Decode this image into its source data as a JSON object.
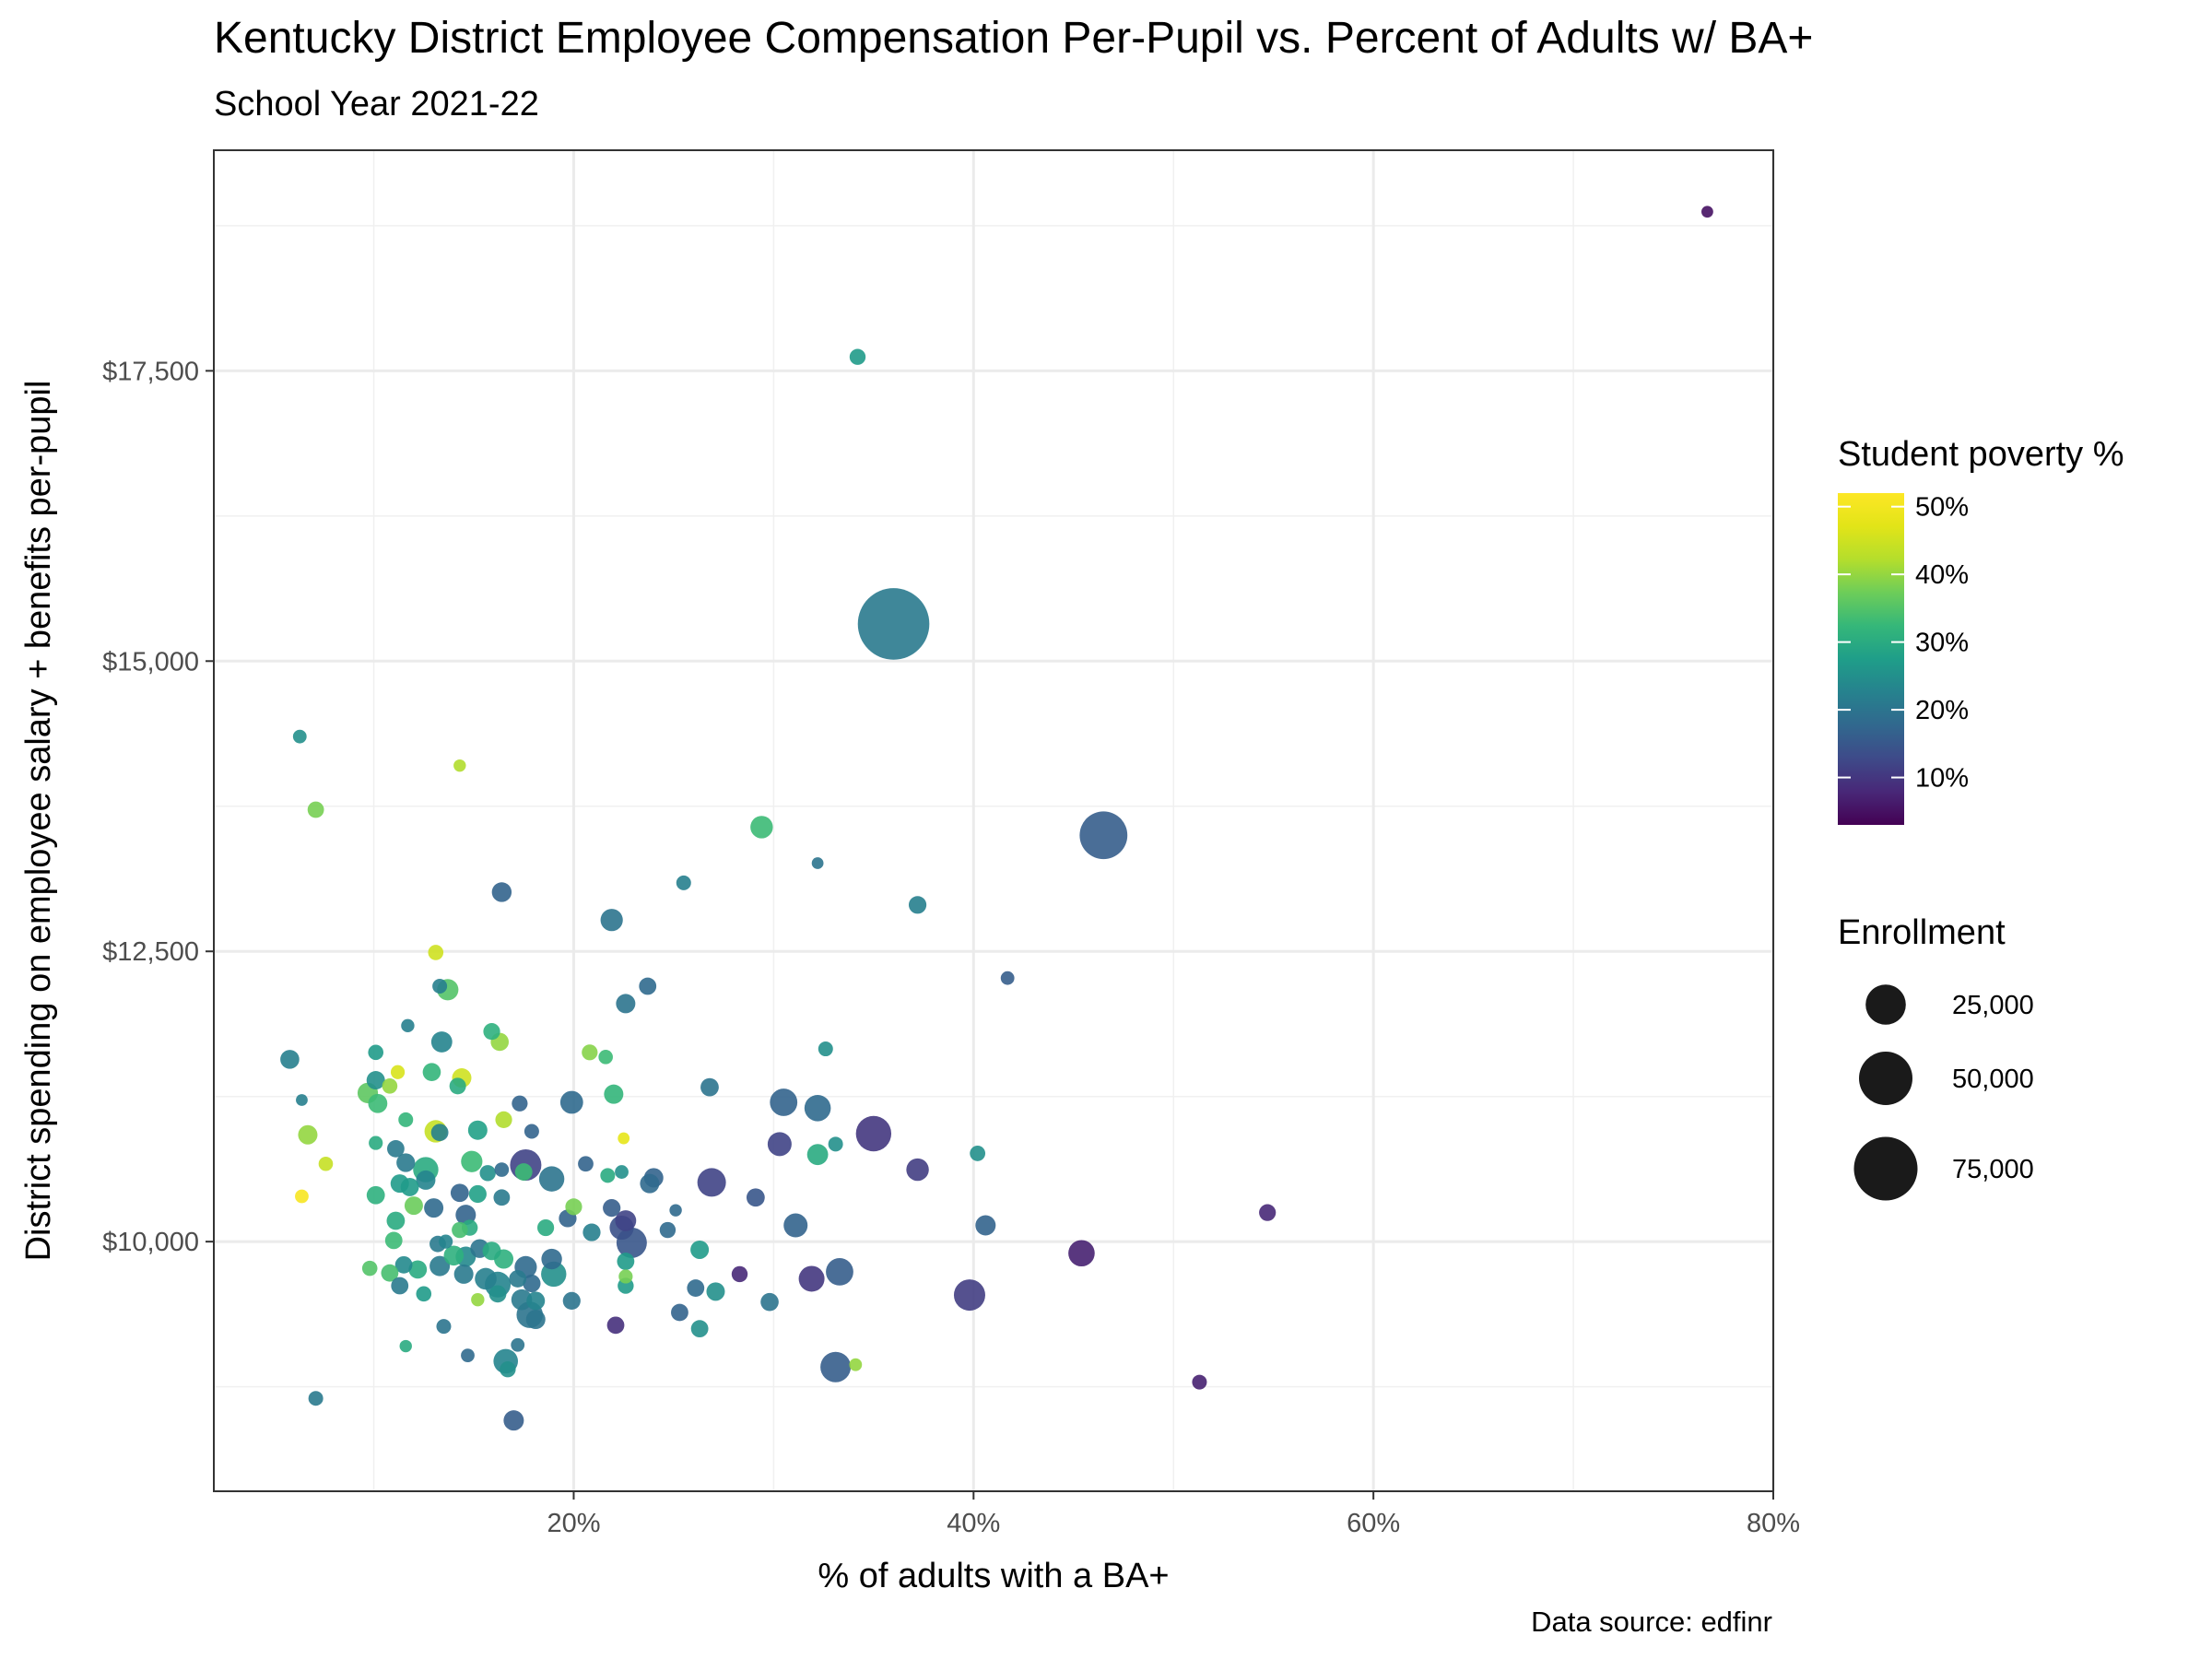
{
  "page": {
    "title": "Kentucky District Employee Compensation Per-Pupil vs. Percent of Adults w/ BA+",
    "subtitle": "School Year 2021-22",
    "caption": "Data source: edfinr"
  },
  "chart_data": {
    "type": "scatter",
    "title": "Kentucky District Employee Compensation Per-Pupil vs. Percent of Adults w/ BA+",
    "subtitle": "School Year 2021-22",
    "xlabel": "% of adults with a BA+",
    "ylabel": "District spending on employee salary + benefits per-pupil",
    "xlim": [
      0.02,
      0.8
    ],
    "ylim": [
      7850,
      19400
    ],
    "x_ticks": [
      {
        "value": 0.2,
        "label": "20%"
      },
      {
        "value": 0.4,
        "label": "40%"
      },
      {
        "value": 0.6,
        "label": "60%"
      },
      {
        "value": 0.8,
        "label": "80%"
      }
    ],
    "y_ticks": [
      {
        "value": 10000,
        "label": "$10,000"
      },
      {
        "value": 12500,
        "label": "$12,500"
      },
      {
        "value": 15000,
        "label": "$15,000"
      },
      {
        "value": 17500,
        "label": "$17,500"
      }
    ],
    "grid": true,
    "color_legend": {
      "title": "Student poverty %",
      "min": 0.03,
      "max": 0.52,
      "ticks": [
        {
          "value": 0.5,
          "label": "50%"
        },
        {
          "value": 0.4,
          "label": "40%"
        },
        {
          "value": 0.3,
          "label": "30%"
        },
        {
          "value": 0.2,
          "label": "20%"
        },
        {
          "value": 0.1,
          "label": "10%"
        }
      ]
    },
    "size_legend": {
      "title": "Enrollment",
      "items": [
        {
          "value": 25000,
          "label": "25,000"
        },
        {
          "value": 50000,
          "label": "50,000"
        },
        {
          "value": 75000,
          "label": "75,000"
        }
      ]
    },
    "points": [
      {
        "x": 0.767,
        "y": 18870,
        "poverty": 0.05,
        "enrollment": 300
      },
      {
        "x": 0.342,
        "y": 17620,
        "poverty": 0.27,
        "enrollment": 1500
      },
      {
        "x": 0.36,
        "y": 15320,
        "poverty": 0.21,
        "enrollment": 98000
      },
      {
        "x": 0.465,
        "y": 13500,
        "poverty": 0.16,
        "enrollment": 38000
      },
      {
        "x": 0.294,
        "y": 13570,
        "poverty": 0.33,
        "enrollment": 5000
      },
      {
        "x": 0.063,
        "y": 14350,
        "poverty": 0.25,
        "enrollment": 700
      },
      {
        "x": 0.143,
        "y": 14100,
        "poverty": 0.42,
        "enrollment": 400
      },
      {
        "x": 0.071,
        "y": 13720,
        "poverty": 0.38,
        "enrollment": 1600
      },
      {
        "x": 0.255,
        "y": 13090,
        "poverty": 0.22,
        "enrollment": 1000
      },
      {
        "x": 0.322,
        "y": 13260,
        "poverty": 0.2,
        "enrollment": 300
      },
      {
        "x": 0.372,
        "y": 12900,
        "poverty": 0.22,
        "enrollment": 2200
      },
      {
        "x": 0.164,
        "y": 13010,
        "poverty": 0.17,
        "enrollment": 3200
      },
      {
        "x": 0.219,
        "y": 12770,
        "poverty": 0.2,
        "enrollment": 4800
      },
      {
        "x": 0.131,
        "y": 12490,
        "poverty": 0.45,
        "enrollment": 1200
      },
      {
        "x": 0.417,
        "y": 12270,
        "poverty": 0.16,
        "enrollment": 700
      },
      {
        "x": 0.237,
        "y": 12200,
        "poverty": 0.18,
        "enrollment": 2000
      },
      {
        "x": 0.226,
        "y": 12050,
        "poverty": 0.2,
        "enrollment": 3000
      },
      {
        "x": 0.137,
        "y": 12170,
        "poverty": 0.35,
        "enrollment": 4200
      },
      {
        "x": 0.133,
        "y": 12200,
        "poverty": 0.22,
        "enrollment": 1000
      },
      {
        "x": 0.117,
        "y": 11860,
        "poverty": 0.22,
        "enrollment": 600
      },
      {
        "x": 0.134,
        "y": 11720,
        "poverty": 0.23,
        "enrollment": 4000
      },
      {
        "x": 0.159,
        "y": 11810,
        "poverty": 0.31,
        "enrollment": 1800
      },
      {
        "x": 0.163,
        "y": 11720,
        "poverty": 0.4,
        "enrollment": 2300
      },
      {
        "x": 0.058,
        "y": 11570,
        "poverty": 0.22,
        "enrollment": 2800
      },
      {
        "x": 0.101,
        "y": 11630,
        "poverty": 0.27,
        "enrollment": 1200
      },
      {
        "x": 0.208,
        "y": 11630,
        "poverty": 0.39,
        "enrollment": 1400
      },
      {
        "x": 0.216,
        "y": 11590,
        "poverty": 0.33,
        "enrollment": 900
      },
      {
        "x": 0.326,
        "y": 11660,
        "poverty": 0.25,
        "enrollment": 1000
      },
      {
        "x": 0.112,
        "y": 11460,
        "poverty": 0.46,
        "enrollment": 800
      },
      {
        "x": 0.129,
        "y": 11460,
        "poverty": 0.32,
        "enrollment": 2300
      },
      {
        "x": 0.144,
        "y": 11410,
        "poverty": 0.45,
        "enrollment": 3000
      },
      {
        "x": 0.101,
        "y": 11390,
        "poverty": 0.25,
        "enrollment": 2500
      },
      {
        "x": 0.108,
        "y": 11340,
        "poverty": 0.4,
        "enrollment": 1200
      },
      {
        "x": 0.142,
        "y": 11340,
        "poverty": 0.3,
        "enrollment": 1700
      },
      {
        "x": 0.097,
        "y": 11280,
        "poverty": 0.36,
        "enrollment": 3600
      },
      {
        "x": 0.268,
        "y": 11330,
        "poverty": 0.2,
        "enrollment": 2400
      },
      {
        "x": 0.22,
        "y": 11270,
        "poverty": 0.32,
        "enrollment": 3000
      },
      {
        "x": 0.102,
        "y": 11190,
        "poverty": 0.33,
        "enrollment": 2900
      },
      {
        "x": 0.064,
        "y": 11220,
        "poverty": 0.22,
        "enrollment": 300
      },
      {
        "x": 0.173,
        "y": 11190,
        "poverty": 0.17,
        "enrollment": 1400
      },
      {
        "x": 0.199,
        "y": 11200,
        "poverty": 0.18,
        "enrollment": 5200
      },
      {
        "x": 0.305,
        "y": 11200,
        "poverty": 0.17,
        "enrollment": 9000
      },
      {
        "x": 0.322,
        "y": 11150,
        "poverty": 0.18,
        "enrollment": 8000
      },
      {
        "x": 0.165,
        "y": 11050,
        "poverty": 0.42,
        "enrollment": 1800
      },
      {
        "x": 0.116,
        "y": 11050,
        "poverty": 0.32,
        "enrollment": 1000
      },
      {
        "x": 0.152,
        "y": 10960,
        "poverty": 0.28,
        "enrollment": 3000
      },
      {
        "x": 0.131,
        "y": 10950,
        "poverty": 0.44,
        "enrollment": 5000
      },
      {
        "x": 0.133,
        "y": 10940,
        "poverty": 0.22,
        "enrollment": 2000
      },
      {
        "x": 0.179,
        "y": 10950,
        "poverty": 0.17,
        "enrollment": 1000
      },
      {
        "x": 0.225,
        "y": 10890,
        "poverty": 0.48,
        "enrollment": 300
      },
      {
        "x": 0.067,
        "y": 10920,
        "poverty": 0.4,
        "enrollment": 3000
      },
      {
        "x": 0.35,
        "y": 10930,
        "poverty": 0.1,
        "enrollment": 18000
      },
      {
        "x": 0.303,
        "y": 10840,
        "poverty": 0.12,
        "enrollment": 6000
      },
      {
        "x": 0.101,
        "y": 10850,
        "poverty": 0.3,
        "enrollment": 800
      },
      {
        "x": 0.111,
        "y": 10800,
        "poverty": 0.21,
        "enrollment": 2000
      },
      {
        "x": 0.331,
        "y": 10840,
        "poverty": 0.25,
        "enrollment": 1000
      },
      {
        "x": 0.322,
        "y": 10750,
        "poverty": 0.3,
        "enrollment": 4000
      },
      {
        "x": 0.402,
        "y": 10760,
        "poverty": 0.25,
        "enrollment": 1300
      },
      {
        "x": 0.116,
        "y": 10680,
        "poverty": 0.21,
        "enrollment": 2600
      },
      {
        "x": 0.126,
        "y": 10620,
        "poverty": 0.3,
        "enrollment": 7000
      },
      {
        "x": 0.149,
        "y": 10690,
        "poverty": 0.33,
        "enrollment": 4200
      },
      {
        "x": 0.176,
        "y": 10660,
        "poverty": 0.12,
        "enrollment": 13000
      },
      {
        "x": 0.175,
        "y": 10600,
        "poverty": 0.33,
        "enrollment": 2000
      },
      {
        "x": 0.076,
        "y": 10670,
        "poverty": 0.44,
        "enrollment": 900
      },
      {
        "x": 0.206,
        "y": 10670,
        "poverty": 0.17,
        "enrollment": 1300
      },
      {
        "x": 0.164,
        "y": 10620,
        "poverty": 0.18,
        "enrollment": 900
      },
      {
        "x": 0.157,
        "y": 10590,
        "poverty": 0.25,
        "enrollment": 1500
      },
      {
        "x": 0.224,
        "y": 10600,
        "poverty": 0.25,
        "enrollment": 700
      },
      {
        "x": 0.217,
        "y": 10570,
        "poverty": 0.3,
        "enrollment": 1000
      },
      {
        "x": 0.24,
        "y": 10550,
        "poverty": 0.17,
        "enrollment": 3000
      },
      {
        "x": 0.238,
        "y": 10500,
        "poverty": 0.18,
        "enrollment": 3000
      },
      {
        "x": 0.189,
        "y": 10540,
        "poverty": 0.2,
        "enrollment": 7000
      },
      {
        "x": 0.126,
        "y": 10530,
        "poverty": 0.23,
        "enrollment": 3000
      },
      {
        "x": 0.113,
        "y": 10500,
        "poverty": 0.27,
        "enrollment": 2500
      },
      {
        "x": 0.269,
        "y": 10510,
        "poverty": 0.12,
        "enrollment": 10000
      },
      {
        "x": 0.372,
        "y": 10620,
        "poverty": 0.11,
        "enrollment": 5000
      },
      {
        "x": 0.118,
        "y": 10470,
        "poverty": 0.27,
        "enrollment": 2400
      },
      {
        "x": 0.143,
        "y": 10420,
        "poverty": 0.17,
        "enrollment": 2400
      },
      {
        "x": 0.152,
        "y": 10410,
        "poverty": 0.28,
        "enrollment": 2200
      },
      {
        "x": 0.064,
        "y": 10390,
        "poverty": 0.51,
        "enrollment": 700
      },
      {
        "x": 0.101,
        "y": 10400,
        "poverty": 0.31,
        "enrollment": 2400
      },
      {
        "x": 0.164,
        "y": 10380,
        "poverty": 0.21,
        "enrollment": 1600
      },
      {
        "x": 0.291,
        "y": 10380,
        "poverty": 0.15,
        "enrollment": 2400
      },
      {
        "x": 0.12,
        "y": 10310,
        "poverty": 0.37,
        "enrollment": 2500
      },
      {
        "x": 0.13,
        "y": 10290,
        "poverty": 0.18,
        "enrollment": 3000
      },
      {
        "x": 0.2,
        "y": 10300,
        "poverty": 0.38,
        "enrollment": 1800
      },
      {
        "x": 0.219,
        "y": 10290,
        "poverty": 0.16,
        "enrollment": 2200
      },
      {
        "x": 0.251,
        "y": 10270,
        "poverty": 0.18,
        "enrollment": 400
      },
      {
        "x": 0.547,
        "y": 10250,
        "poverty": 0.08,
        "enrollment": 1800
      },
      {
        "x": 0.146,
        "y": 10230,
        "poverty": 0.17,
        "enrollment": 3500
      },
      {
        "x": 0.197,
        "y": 10200,
        "poverty": 0.17,
        "enrollment": 2200
      },
      {
        "x": 0.226,
        "y": 10180,
        "poverty": 0.12,
        "enrollment": 4000
      },
      {
        "x": 0.111,
        "y": 10180,
        "poverty": 0.3,
        "enrollment": 2400
      },
      {
        "x": 0.224,
        "y": 10120,
        "poverty": 0.14,
        "enrollment": 6200
      },
      {
        "x": 0.311,
        "y": 10140,
        "poverty": 0.17,
        "enrollment": 6000
      },
      {
        "x": 0.406,
        "y": 10140,
        "poverty": 0.17,
        "enrollment": 3500
      },
      {
        "x": 0.148,
        "y": 10120,
        "poverty": 0.3,
        "enrollment": 1500
      },
      {
        "x": 0.143,
        "y": 10100,
        "poverty": 0.34,
        "enrollment": 1500
      },
      {
        "x": 0.186,
        "y": 10120,
        "poverty": 0.3,
        "enrollment": 1800
      },
      {
        "x": 0.209,
        "y": 10080,
        "poverty": 0.22,
        "enrollment": 2200
      },
      {
        "x": 0.247,
        "y": 10100,
        "poverty": 0.18,
        "enrollment": 1500
      },
      {
        "x": 0.11,
        "y": 10010,
        "poverty": 0.33,
        "enrollment": 2000
      },
      {
        "x": 0.229,
        "y": 9990,
        "poverty": 0.15,
        "enrollment": 12000
      },
      {
        "x": 0.132,
        "y": 9980,
        "poverty": 0.21,
        "enrollment": 1600
      },
      {
        "x": 0.136,
        "y": 10000,
        "poverty": 0.23,
        "enrollment": 800
      },
      {
        "x": 0.153,
        "y": 9940,
        "poverty": 0.2,
        "enrollment": 2700
      },
      {
        "x": 0.159,
        "y": 9920,
        "poverty": 0.3,
        "enrollment": 2500
      },
      {
        "x": 0.263,
        "y": 9930,
        "poverty": 0.27,
        "enrollment": 2500
      },
      {
        "x": 0.454,
        "y": 9900,
        "poverty": 0.07,
        "enrollment": 8000
      },
      {
        "x": 0.14,
        "y": 9880,
        "poverty": 0.31,
        "enrollment": 3300
      },
      {
        "x": 0.146,
        "y": 9870,
        "poverty": 0.24,
        "enrollment": 3500
      },
      {
        "x": 0.165,
        "y": 9850,
        "poverty": 0.31,
        "enrollment": 3000
      },
      {
        "x": 0.189,
        "y": 9850,
        "poverty": 0.18,
        "enrollment": 3700
      },
      {
        "x": 0.226,
        "y": 9830,
        "poverty": 0.27,
        "enrollment": 2000
      },
      {
        "x": 0.115,
        "y": 9800,
        "poverty": 0.24,
        "enrollment": 2000
      },
      {
        "x": 0.133,
        "y": 9790,
        "poverty": 0.21,
        "enrollment": 3500
      },
      {
        "x": 0.176,
        "y": 9780,
        "poverty": 0.18,
        "enrollment": 4800
      },
      {
        "x": 0.098,
        "y": 9770,
        "poverty": 0.35,
        "enrollment": 1200
      },
      {
        "x": 0.122,
        "y": 9760,
        "poverty": 0.3,
        "enrollment": 2400
      },
      {
        "x": 0.108,
        "y": 9730,
        "poverty": 0.34,
        "enrollment": 2000
      },
      {
        "x": 0.145,
        "y": 9720,
        "poverty": 0.21,
        "enrollment": 3000
      },
      {
        "x": 0.19,
        "y": 9720,
        "poverty": 0.25,
        "enrollment": 7000
      },
      {
        "x": 0.226,
        "y": 9700,
        "poverty": 0.38,
        "enrollment": 800
      },
      {
        "x": 0.283,
        "y": 9720,
        "poverty": 0.08,
        "enrollment": 1500
      },
      {
        "x": 0.319,
        "y": 9680,
        "poverty": 0.1,
        "enrollment": 7500
      },
      {
        "x": 0.333,
        "y": 9740,
        "poverty": 0.16,
        "enrollment": 9000
      },
      {
        "x": 0.156,
        "y": 9680,
        "poverty": 0.22,
        "enrollment": 4500
      },
      {
        "x": 0.172,
        "y": 9680,
        "poverty": 0.21,
        "enrollment": 2000
      },
      {
        "x": 0.162,
        "y": 9630,
        "poverty": 0.23,
        "enrollment": 7500
      },
      {
        "x": 0.179,
        "y": 9640,
        "poverty": 0.18,
        "enrollment": 2200
      },
      {
        "x": 0.113,
        "y": 9620,
        "poverty": 0.21,
        "enrollment": 2000
      },
      {
        "x": 0.226,
        "y": 9620,
        "poverty": 0.27,
        "enrollment": 1500
      },
      {
        "x": 0.261,
        "y": 9600,
        "poverty": 0.18,
        "enrollment": 2000
      },
      {
        "x": 0.271,
        "y": 9570,
        "poverty": 0.25,
        "enrollment": 2500
      },
      {
        "x": 0.125,
        "y": 9550,
        "poverty": 0.27,
        "enrollment": 1200
      },
      {
        "x": 0.162,
        "y": 9550,
        "poverty": 0.25,
        "enrollment": 2000
      },
      {
        "x": 0.152,
        "y": 9500,
        "poverty": 0.4,
        "enrollment": 600
      },
      {
        "x": 0.174,
        "y": 9500,
        "poverty": 0.21,
        "enrollment": 3800
      },
      {
        "x": 0.181,
        "y": 9490,
        "poverty": 0.23,
        "enrollment": 2500
      },
      {
        "x": 0.199,
        "y": 9490,
        "poverty": 0.2,
        "enrollment": 2200
      },
      {
        "x": 0.298,
        "y": 9480,
        "poverty": 0.2,
        "enrollment": 2300
      },
      {
        "x": 0.398,
        "y": 9540,
        "poverty": 0.11,
        "enrollment": 13000
      },
      {
        "x": 0.178,
        "y": 9370,
        "poverty": 0.2,
        "enrollment": 8000
      },
      {
        "x": 0.181,
        "y": 9330,
        "poverty": 0.2,
        "enrollment": 3000
      },
      {
        "x": 0.253,
        "y": 9390,
        "poverty": 0.17,
        "enrollment": 2000
      },
      {
        "x": 0.135,
        "y": 9270,
        "poverty": 0.2,
        "enrollment": 1000
      },
      {
        "x": 0.221,
        "y": 9280,
        "poverty": 0.09,
        "enrollment": 2000
      },
      {
        "x": 0.263,
        "y": 9250,
        "poverty": 0.25,
        "enrollment": 2000
      },
      {
        "x": 0.172,
        "y": 9110,
        "poverty": 0.2,
        "enrollment": 700
      },
      {
        "x": 0.116,
        "y": 9100,
        "poverty": 0.3,
        "enrollment": 400
      },
      {
        "x": 0.147,
        "y": 9020,
        "poverty": 0.18,
        "enrollment": 700
      },
      {
        "x": 0.166,
        "y": 8970,
        "poverty": 0.23,
        "enrollment": 6500
      },
      {
        "x": 0.167,
        "y": 8900,
        "poverty": 0.25,
        "enrollment": 1500
      },
      {
        "x": 0.331,
        "y": 8920,
        "poverty": 0.16,
        "enrollment": 12000
      },
      {
        "x": 0.341,
        "y": 8940,
        "poverty": 0.4,
        "enrollment": 500
      },
      {
        "x": 0.513,
        "y": 8790,
        "poverty": 0.07,
        "enrollment": 1000
      },
      {
        "x": 0.071,
        "y": 8650,
        "poverty": 0.21,
        "enrollment": 1000
      },
      {
        "x": 0.17,
        "y": 8460,
        "poverty": 0.16,
        "enrollment": 3500
      }
    ]
  }
}
